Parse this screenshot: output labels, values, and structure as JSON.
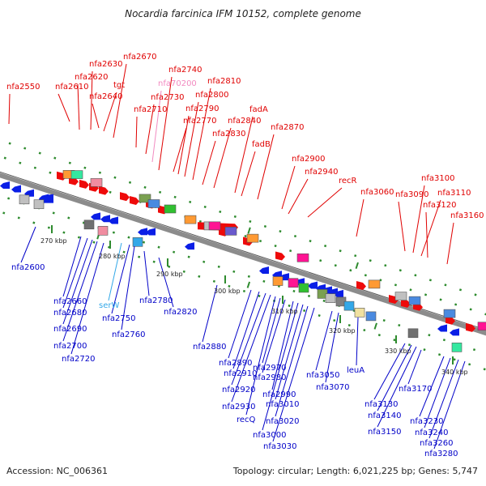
{
  "title": "Nocardia farcinica IFM 10152, complete genome",
  "footer": {
    "accession": "Accession: NC_006361",
    "topology": "Topology: circular; Length: 6,021,225 bp; Genes: 5,747"
  },
  "colors": {
    "top_label": "#e00000",
    "bottom_label": "#0000c8",
    "trna_label": "#33a8e8",
    "ncrna_label": "#f28ac0",
    "tick": "#2e8b2e",
    "backbone": "#8c8c8c"
  },
  "ruler": [
    {
      "label": "270 kbp"
    },
    {
      "label": "280 kbp"
    },
    {
      "label": "290 kbp"
    },
    {
      "label": "300 kbp"
    },
    {
      "label": "310 kbp"
    },
    {
      "label": "320 kbp"
    },
    {
      "label": "330 kbp"
    },
    {
      "label": "340 kbp"
    }
  ],
  "top_genes": [
    "nfa2550",
    "nfa2610",
    "nfa2620",
    "nfa2630",
    "nfa2640",
    "tgt",
    "nfa2670",
    "nfa2710",
    "nfa2730",
    "nfa70200",
    "nfa2740",
    "nfa2770",
    "nfa2790",
    "nfa2800",
    "nfa2810",
    "nfa2830",
    "nfa2840",
    "fadA",
    "fadB",
    "nfa2870",
    "nfa2900",
    "nfa2940",
    "recR",
    "nfa3060",
    "nfa3090",
    "nfa3100",
    "nfa3110",
    "nfa3120",
    "nfa3160"
  ],
  "bottom_genes": [
    "nfa2600",
    "nfa2660",
    "nfa2680",
    "nfa2690",
    "nfa2700",
    "nfa2720",
    "serW",
    "nfa2750",
    "nfa2760",
    "nfa2780",
    "nfa2820",
    "nfa2880",
    "nfa2890",
    "nfa2910",
    "nfa2920",
    "nfa2930",
    "recQ",
    "nfa2970",
    "nfa2980",
    "nfa2990",
    "nfa3000",
    "nfa3010",
    "nfa3020",
    "nfa3030",
    "nfa3050",
    "nfa3070",
    "leuA",
    "nfa3130",
    "nfa3140",
    "nfa3150",
    "nfa3170",
    "nfa3230",
    "nfa3240",
    "nfa3260",
    "nfa3280"
  ]
}
